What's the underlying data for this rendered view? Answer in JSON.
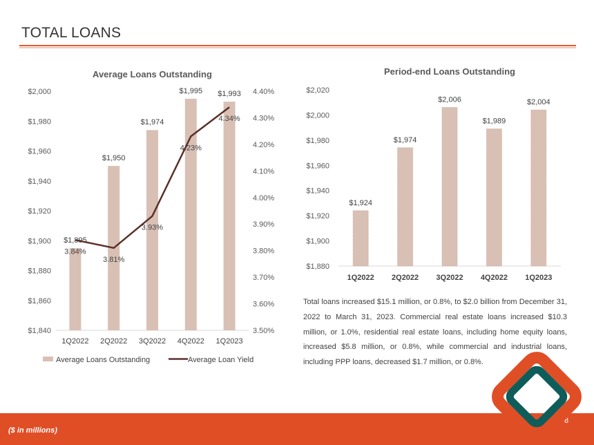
{
  "page": {
    "title": "TOTAL LOANS",
    "footnote": "($ in millions)",
    "page_number": "8",
    "summary": "Total loans increased $15.1 million, or 0.8%, to $2.0 billion from December 31, 2022 to March 31, 2023. Commercial real estate loans increased $10.3 million, or 1.0%, residential real estate loans, including home equity loans, increased $5.8 million, or 0.8%, while commercial and industrial loans, including PPP loans, decreased $1.7 million, or 0.8%."
  },
  "colors": {
    "bar": "#d9c0b5",
    "line": "#5a3028",
    "accent": "#e04e26",
    "logo_teal": "#0f5d5a",
    "logo_orange": "#e04e26"
  },
  "chart_data": [
    {
      "type": "bar",
      "title": "Average Loans Outstanding",
      "categories": [
        "1Q2022",
        "2Q2022",
        "3Q2022",
        "4Q2022",
        "1Q2023"
      ],
      "series": [
        {
          "name": "Average Loans Outstanding",
          "axis": "left",
          "values": [
            1895,
            1950,
            1974,
            1995,
            1993
          ],
          "labels": [
            "$1,895",
            "$1,950",
            "$1,974",
            "$1,995",
            "$1,993"
          ]
        },
        {
          "name": "Average Loan Yield",
          "type": "line",
          "axis": "right",
          "values": [
            3.84,
            3.81,
            3.93,
            4.23,
            4.34
          ],
          "labels": [
            "3.84%",
            "3.81%",
            "3.93%",
            "4.23%",
            "4.34%"
          ]
        }
      ],
      "ylim": [
        1840,
        2000
      ],
      "yticks": [
        "$1,840",
        "$1,860",
        "$1,880",
        "$1,900",
        "$1,920",
        "$1,940",
        "$1,960",
        "$1,980",
        "$2,000"
      ],
      "y2lim": [
        3.5,
        4.4
      ],
      "y2ticks": [
        "3.50%",
        "3.60%",
        "3.70%",
        "3.80%",
        "3.90%",
        "4.00%",
        "4.10%",
        "4.20%",
        "4.30%",
        "4.40%"
      ],
      "legend": "bottom"
    },
    {
      "type": "bar",
      "title": "Period-end Loans Outstanding",
      "categories": [
        "1Q2022",
        "2Q2022",
        "3Q2022",
        "4Q2022",
        "1Q2023"
      ],
      "values": [
        1924,
        1974,
        2006,
        1989,
        2004
      ],
      "labels": [
        "$1,924",
        "$1,974",
        "$2,006",
        "$1,989",
        "$2,004"
      ],
      "ylim": [
        1880,
        2020
      ],
      "yticks": [
        "$1,880",
        "$1,900",
        "$1,920",
        "$1,940",
        "$1,960",
        "$1,980",
        "$2,000",
        "$2,020"
      ]
    }
  ]
}
